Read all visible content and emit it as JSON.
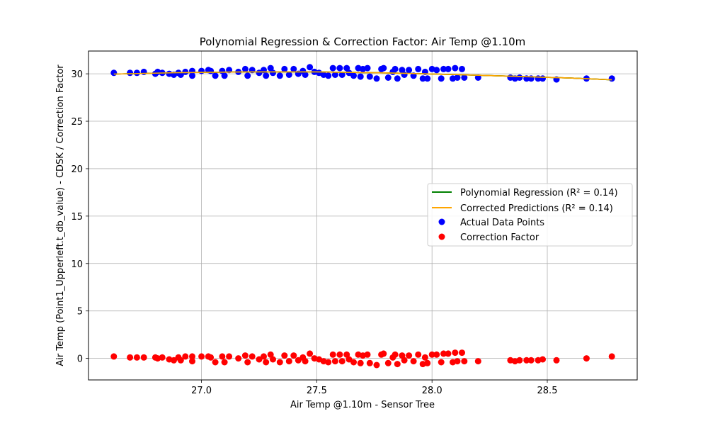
{
  "chart_data": {
    "type": "scatter",
    "title": "Polynomial Regression & Correction Factor: Air Temp @1.10m",
    "xlabel": "Air Temp @1.10m - Sensor Tree",
    "ylabel": "Air Temp (Point1_Upperleft.t_db_value) - CDSK / Correction Factor",
    "xlim": [
      26.51,
      28.89
    ],
    "ylim": [
      -2.27,
      32.4
    ],
    "xticks": [
      27.0,
      27.5,
      28.0,
      28.5
    ],
    "xtick_labels": [
      "27.0",
      "27.5",
      "28.0",
      "28.5"
    ],
    "yticks": [
      0,
      5,
      10,
      15,
      20,
      25,
      30
    ],
    "ytick_labels": [
      "0",
      "5",
      "10",
      "15",
      "20",
      "25",
      "30"
    ],
    "grid": true,
    "legend_position": "center-right",
    "series": [
      {
        "name": "Polynomial Regression (R² = 0.14)",
        "kind": "line",
        "color": "#008000",
        "x": [
          26.62,
          26.9,
          27.2,
          27.5,
          27.8,
          28.1,
          28.4,
          28.6,
          28.78
        ],
        "y": [
          29.97,
          30.12,
          30.2,
          30.2,
          30.1,
          29.92,
          29.7,
          29.55,
          29.37
        ]
      },
      {
        "name": "Corrected Predictions (R² = 0.14)",
        "kind": "line",
        "color": "#FFA500",
        "x": [
          26.62,
          26.9,
          27.2,
          27.5,
          27.8,
          28.1,
          28.4,
          28.6,
          28.78
        ],
        "y": [
          29.97,
          30.12,
          30.2,
          30.2,
          30.1,
          29.92,
          29.7,
          29.55,
          29.37
        ]
      },
      {
        "name": "Actual Data Points",
        "kind": "scatter",
        "color": "#0000FF",
        "points": [
          [
            26.62,
            30.1
          ],
          [
            26.69,
            30.1
          ],
          [
            26.72,
            30.1
          ],
          [
            26.75,
            30.2
          ],
          [
            26.8,
            30.0
          ],
          [
            26.81,
            30.2
          ],
          [
            26.83,
            30.1
          ],
          [
            26.86,
            30.0
          ],
          [
            26.88,
            29.9
          ],
          [
            26.9,
            30.1
          ],
          [
            26.91,
            29.9
          ],
          [
            26.93,
            30.2
          ],
          [
            26.96,
            29.8
          ],
          [
            26.96,
            30.3
          ],
          [
            27.0,
            30.3
          ],
          [
            27.03,
            30.4
          ],
          [
            27.04,
            30.3
          ],
          [
            27.06,
            29.8
          ],
          [
            27.09,
            30.3
          ],
          [
            27.1,
            29.8
          ],
          [
            27.12,
            30.4
          ],
          [
            27.16,
            30.2
          ],
          [
            27.19,
            30.5
          ],
          [
            27.2,
            29.8
          ],
          [
            27.22,
            30.4
          ],
          [
            27.25,
            30.1
          ],
          [
            27.27,
            30.4
          ],
          [
            27.28,
            29.8
          ],
          [
            27.3,
            30.6
          ],
          [
            27.31,
            30.1
          ],
          [
            27.34,
            29.8
          ],
          [
            27.36,
            30.5
          ],
          [
            27.38,
            29.9
          ],
          [
            27.4,
            30.5
          ],
          [
            27.42,
            30.0
          ],
          [
            27.44,
            30.3
          ],
          [
            27.45,
            29.9
          ],
          [
            27.47,
            30.7
          ],
          [
            27.49,
            30.2
          ],
          [
            27.51,
            30.1
          ],
          [
            27.53,
            29.9
          ],
          [
            27.55,
            29.8
          ],
          [
            27.57,
            30.6
          ],
          [
            27.58,
            29.9
          ],
          [
            27.6,
            30.6
          ],
          [
            27.61,
            29.9
          ],
          [
            27.63,
            30.6
          ],
          [
            27.64,
            30.1
          ],
          [
            27.66,
            29.8
          ],
          [
            27.68,
            30.6
          ],
          [
            27.69,
            29.7
          ],
          [
            27.7,
            30.5
          ],
          [
            27.72,
            30.6
          ],
          [
            27.73,
            29.7
          ],
          [
            27.76,
            29.5
          ],
          [
            27.78,
            30.5
          ],
          [
            27.79,
            30.6
          ],
          [
            27.81,
            29.6
          ],
          [
            27.83,
            30.2
          ],
          [
            27.84,
            30.5
          ],
          [
            27.85,
            29.5
          ],
          [
            27.87,
            30.4
          ],
          [
            27.88,
            29.9
          ],
          [
            27.9,
            30.4
          ],
          [
            27.92,
            29.8
          ],
          [
            27.94,
            30.5
          ],
          [
            27.96,
            29.5
          ],
          [
            27.97,
            30.2
          ],
          [
            27.98,
            29.5
          ],
          [
            28.0,
            30.5
          ],
          [
            28.02,
            30.4
          ],
          [
            28.04,
            29.5
          ],
          [
            28.05,
            30.5
          ],
          [
            28.07,
            30.5
          ],
          [
            28.09,
            29.5
          ],
          [
            28.1,
            30.6
          ],
          [
            28.11,
            29.6
          ],
          [
            28.13,
            30.5
          ],
          [
            28.14,
            29.6
          ],
          [
            28.2,
            29.6
          ],
          [
            28.34,
            29.6
          ],
          [
            28.36,
            29.5
          ],
          [
            28.38,
            29.6
          ],
          [
            28.41,
            29.5
          ],
          [
            28.43,
            29.5
          ],
          [
            28.46,
            29.5
          ],
          [
            28.48,
            29.5
          ],
          [
            28.54,
            29.4
          ],
          [
            28.67,
            29.5
          ],
          [
            28.78,
            29.5
          ]
        ]
      },
      {
        "name": "Correction Factor",
        "kind": "scatter",
        "color": "#FF0000",
        "points": [
          [
            26.62,
            0.2
          ],
          [
            26.69,
            0.1
          ],
          [
            26.72,
            0.1
          ],
          [
            26.75,
            0.1
          ],
          [
            26.8,
            0.1
          ],
          [
            26.81,
            0.0
          ],
          [
            26.83,
            0.1
          ],
          [
            26.86,
            -0.1
          ],
          [
            26.88,
            -0.2
          ],
          [
            26.9,
            0.1
          ],
          [
            26.91,
            -0.2
          ],
          [
            26.93,
            0.2
          ],
          [
            26.96,
            -0.3
          ],
          [
            26.96,
            0.2
          ],
          [
            27.0,
            0.2
          ],
          [
            27.03,
            0.2
          ],
          [
            27.04,
            0.1
          ],
          [
            27.06,
            -0.4
          ],
          [
            27.09,
            0.2
          ],
          [
            27.1,
            -0.4
          ],
          [
            27.12,
            0.2
          ],
          [
            27.16,
            0.0
          ],
          [
            27.19,
            0.3
          ],
          [
            27.2,
            -0.4
          ],
          [
            27.22,
            0.2
          ],
          [
            27.25,
            -0.1
          ],
          [
            27.27,
            0.2
          ],
          [
            27.28,
            -0.4
          ],
          [
            27.3,
            0.4
          ],
          [
            27.31,
            -0.1
          ],
          [
            27.34,
            -0.4
          ],
          [
            27.36,
            0.3
          ],
          [
            27.38,
            -0.3
          ],
          [
            27.4,
            0.3
          ],
          [
            27.42,
            -0.2
          ],
          [
            27.44,
            0.1
          ],
          [
            27.45,
            -0.3
          ],
          [
            27.47,
            0.5
          ],
          [
            27.49,
            0.0
          ],
          [
            27.51,
            -0.1
          ],
          [
            27.53,
            -0.3
          ],
          [
            27.55,
            -0.4
          ],
          [
            27.57,
            0.4
          ],
          [
            27.58,
            -0.3
          ],
          [
            27.6,
            0.4
          ],
          [
            27.61,
            -0.3
          ],
          [
            27.63,
            0.4
          ],
          [
            27.64,
            -0.1
          ],
          [
            27.66,
            -0.4
          ],
          [
            27.68,
            0.4
          ],
          [
            27.69,
            -0.5
          ],
          [
            27.7,
            0.3
          ],
          [
            27.72,
            0.4
          ],
          [
            27.73,
            -0.5
          ],
          [
            27.76,
            -0.7
          ],
          [
            27.78,
            0.4
          ],
          [
            27.79,
            0.5
          ],
          [
            27.81,
            -0.5
          ],
          [
            27.83,
            0.1
          ],
          [
            27.84,
            0.4
          ],
          [
            27.85,
            -0.6
          ],
          [
            27.87,
            0.3
          ],
          [
            27.88,
            -0.2
          ],
          [
            27.9,
            0.3
          ],
          [
            27.92,
            -0.3
          ],
          [
            27.94,
            0.4
          ],
          [
            27.96,
            -0.6
          ],
          [
            27.97,
            0.1
          ],
          [
            27.98,
            -0.5
          ],
          [
            28.0,
            0.4
          ],
          [
            28.02,
            0.4
          ],
          [
            28.04,
            -0.4
          ],
          [
            28.05,
            0.5
          ],
          [
            28.07,
            0.5
          ],
          [
            28.09,
            -0.4
          ],
          [
            28.1,
            0.6
          ],
          [
            28.11,
            -0.3
          ],
          [
            28.13,
            0.6
          ],
          [
            28.14,
            -0.3
          ],
          [
            28.2,
            -0.3
          ],
          [
            28.34,
            -0.2
          ],
          [
            28.36,
            -0.3
          ],
          [
            28.38,
            -0.2
          ],
          [
            28.41,
            -0.2
          ],
          [
            28.43,
            -0.2
          ],
          [
            28.46,
            -0.2
          ],
          [
            28.48,
            -0.1
          ],
          [
            28.54,
            -0.2
          ],
          [
            28.67,
            0.0
          ],
          [
            28.78,
            0.2
          ]
        ]
      }
    ]
  }
}
